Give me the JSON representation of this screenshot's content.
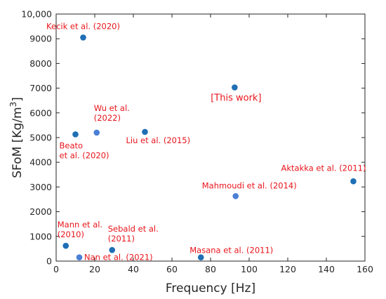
{
  "chart_data": {
    "type": "scatter",
    "title": "",
    "xlabel": "Frequency [Hz]",
    "ylabel_main": "SFoM [Kg/m",
    "ylabel_sup": "3",
    "ylabel_close": "]",
    "xlim": [
      0,
      160
    ],
    "ylim": [
      0,
      10000
    ],
    "x_ticks": [
      0,
      20,
      40,
      60,
      80,
      100,
      120,
      140,
      160
    ],
    "x_tick_labels": [
      "0",
      "20",
      "40",
      "60",
      "80",
      "100",
      "120",
      "140",
      "160"
    ],
    "y_ticks": [
      0,
      1000,
      2000,
      3000,
      4000,
      5000,
      6000,
      7000,
      8000,
      9000,
      10000
    ],
    "y_tick_labels": [
      "0",
      "1000",
      "2000",
      "3000",
      "4000",
      "5000",
      "6000",
      "7000",
      "8000",
      "9000",
      "10,000"
    ],
    "grid": false,
    "marker_color": "#1f6fb5",
    "highlight_color": "#4a7fd6",
    "annotation_color": "#e8141b",
    "points": [
      {
        "x": 14,
        "y": 9050,
        "label_lines": [
          "Kecik et al. (2020)"
        ]
      },
      {
        "x": 92.5,
        "y": 7030,
        "label_lines": [
          "[This work]"
        ]
      },
      {
        "x": 10,
        "y": 5130,
        "label_lines": [
          "Beato",
          "et al. (2020)"
        ]
      },
      {
        "x": 21,
        "y": 5200,
        "label_lines": [
          "Wu et al.",
          "(2022)"
        ]
      },
      {
        "x": 46,
        "y": 5230,
        "label_lines": [
          "Liu et al. (2015)"
        ]
      },
      {
        "x": 154,
        "y": 3230,
        "label_lines": [
          "Aktakka et al. (2011)"
        ]
      },
      {
        "x": 93,
        "y": 2630,
        "label_lines": [
          "Mahmoudi et al. (2014)"
        ]
      },
      {
        "x": 5,
        "y": 620,
        "label_lines": [
          "Mann et al.",
          "(2010)"
        ]
      },
      {
        "x": 29,
        "y": 450,
        "label_lines": [
          "Sebald et al.",
          "(2011)"
        ]
      },
      {
        "x": 12,
        "y": 150,
        "label_lines": [
          "Nan et al. (2021)"
        ]
      },
      {
        "x": 75,
        "y": 150,
        "label_lines": [
          "Masana et al. (2011)"
        ]
      }
    ]
  }
}
